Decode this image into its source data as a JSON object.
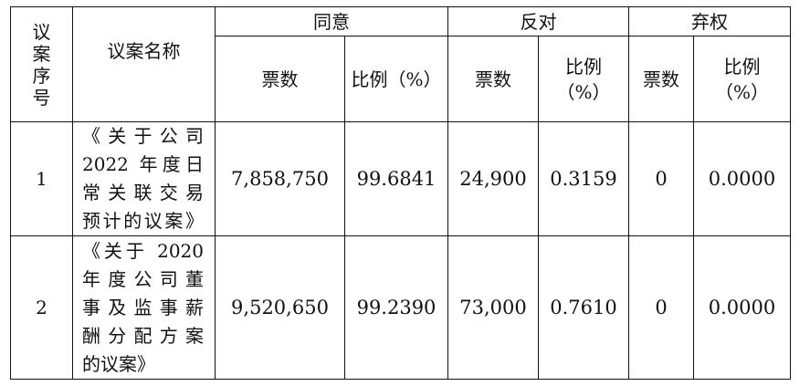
{
  "headers": {
    "seq_chars": [
      "议",
      "案",
      "序",
      "号"
    ],
    "name": "议案名称",
    "agree": "同意",
    "oppose": "反对",
    "abstain": "弃权",
    "votes": "票数",
    "ratio": "比例（%）",
    "ratio_line1": "比例",
    "ratio_line2": "（%）"
  },
  "rows": [
    {
      "seq": "1",
      "name_lines": [
        "《关于公司",
        "2022 年度日",
        "常关联交易",
        "预计的议案》"
      ],
      "agree_votes": "7,858,750",
      "agree_ratio": "99.6841",
      "oppose_votes": "24,900",
      "oppose_ratio": "0.3159",
      "abstain_votes": "0",
      "abstain_ratio": "0.0000"
    },
    {
      "seq": "2",
      "name_lines": [
        "《关于 2020",
        "年度公司董",
        "事及监事薪",
        "酬分配方案",
        "的议案》"
      ],
      "agree_votes": "9,520,650",
      "agree_ratio": "99.2390",
      "oppose_votes": "73,000",
      "oppose_ratio": "0.7610",
      "abstain_votes": "0",
      "abstain_ratio": "0.0000"
    }
  ]
}
